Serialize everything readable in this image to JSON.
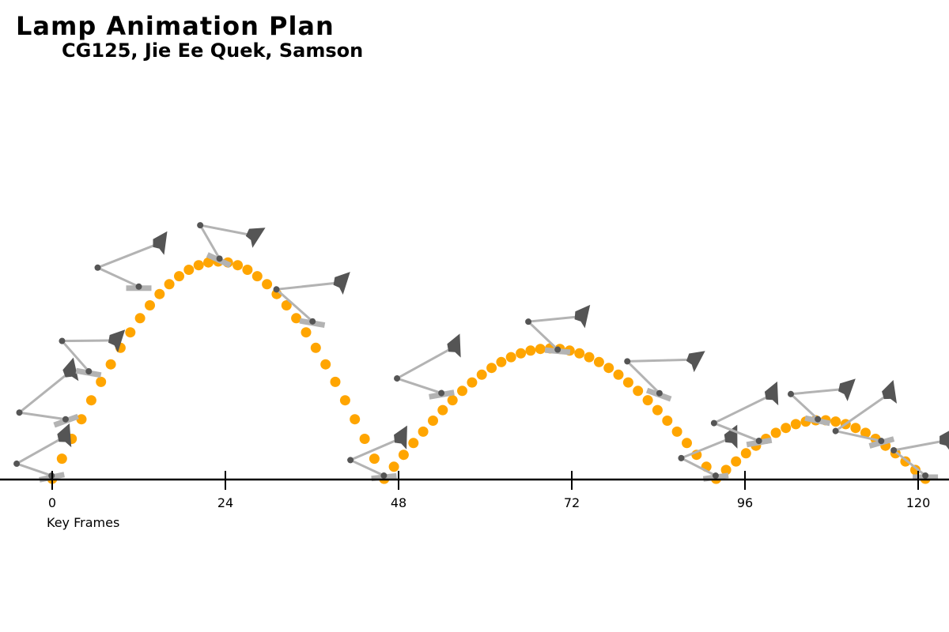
{
  "header": {
    "title": "Lamp Animation Plan",
    "subtitle": "CG125, Jie Ee Quek, Samson"
  },
  "colors": {
    "path_dot": "#ffa500",
    "lamp_head": "#555555",
    "lamp_arm": "#b3b3b3",
    "lamp_base": "#b3b3b3",
    "axis": "#000000"
  },
  "icons": {
    "lamp": "desk-lamp-pose-icon"
  },
  "axis": {
    "label": "Key Frames",
    "ticks": [
      0,
      24,
      48,
      72,
      96,
      120
    ],
    "range": [
      0,
      120
    ]
  },
  "chart_data": {
    "type": "diagram",
    "xlabel": "Key Frames",
    "xlim": [
      -7,
      124
    ],
    "ylim": [
      0,
      100
    ],
    "arcs": [
      {
        "start": 0,
        "end": 46,
        "peak": 100
      },
      {
        "start": 46,
        "end": 92,
        "peak": 60
      },
      {
        "start": 92,
        "end": 121,
        "peak": 27
      }
    ],
    "poses": [
      {
        "frame": 0,
        "height": 0,
        "tilt": -12
      },
      {
        "frame": 2,
        "height": 26,
        "tilt": -20
      },
      {
        "frame": 5,
        "height": 48,
        "tilt": 10
      },
      {
        "frame": 12,
        "height": 87,
        "tilt": 0
      },
      {
        "frame": 23,
        "height": 100,
        "tilt": 25
      },
      {
        "frame": 36,
        "height": 71,
        "tilt": 10
      },
      {
        "frame": 46,
        "height": 0,
        "tilt": -6
      },
      {
        "frame": 54,
        "height": 38,
        "tilt": -10
      },
      {
        "frame": 70,
        "height": 58,
        "tilt": 5
      },
      {
        "frame": 84,
        "height": 38,
        "tilt": 20
      },
      {
        "frame": 92,
        "height": 0,
        "tilt": -8
      },
      {
        "frame": 98,
        "height": 16,
        "tilt": -10
      },
      {
        "frame": 106,
        "height": 26,
        "tilt": 12
      },
      {
        "frame": 115,
        "height": 16,
        "tilt": -16
      },
      {
        "frame": 121,
        "height": 0,
        "tilt": 0
      }
    ]
  }
}
